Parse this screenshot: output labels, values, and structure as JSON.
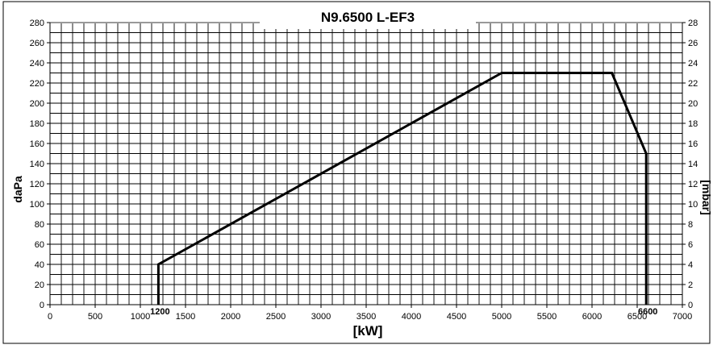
{
  "chart_data": {
    "type": "area",
    "title": "N9.6500 L-EF3",
    "xlabel": "[kW]",
    "ylabel_left": "daPa",
    "ylabel_right": "[mbar]",
    "xlim": [
      0,
      7000
    ],
    "ylim_left": [
      0,
      280
    ],
    "ylim_right": [
      0,
      28
    ],
    "x_ticks": [
      0,
      500,
      1000,
      1500,
      2000,
      2500,
      3000,
      3500,
      4000,
      4500,
      5000,
      5500,
      6000,
      6500,
      7000
    ],
    "y_ticks_left": [
      0,
      20,
      40,
      60,
      80,
      100,
      120,
      140,
      160,
      180,
      200,
      220,
      240,
      260,
      280
    ],
    "y_ticks_right": [
      0,
      2,
      4,
      6,
      8,
      10,
      12,
      14,
      16,
      18,
      20,
      22,
      24,
      26,
      28
    ],
    "grid": true,
    "series": [
      {
        "x": [
          1200,
          1200,
          5000,
          6220,
          6600,
          6600
        ],
        "y": [
          0,
          40,
          230,
          230,
          150,
          0
        ]
      }
    ],
    "annotations": [
      {
        "text": "1200",
        "x": 1200
      },
      {
        "text": "6600",
        "x": 6600
      }
    ]
  }
}
